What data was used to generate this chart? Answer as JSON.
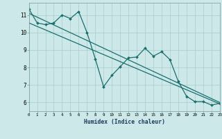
{
  "xlabel": "Humidex (Indice chaleur)",
  "bg_color": "#cce8e8",
  "grid_color": "#aacccc",
  "line_color": "#1a6e6e",
  "x_min": 0,
  "x_max": 23,
  "y_min": 5.5,
  "y_max": 11.7,
  "y_ticks": [
    6,
    7,
    8,
    9,
    10,
    11
  ],
  "line1_x": [
    0,
    1,
    2,
    3,
    4,
    5,
    6,
    7,
    8,
    9,
    10,
    11,
    12,
    13,
    14,
    15,
    16,
    17,
    18,
    19,
    20,
    21,
    22,
    23
  ],
  "line1_y": [
    11.35,
    10.55,
    10.45,
    10.55,
    11.0,
    10.8,
    11.2,
    10.0,
    8.5,
    6.9,
    7.55,
    8.05,
    8.55,
    8.6,
    9.1,
    8.65,
    8.9,
    8.45,
    7.2,
    6.35,
    6.05,
    6.05,
    5.85,
    5.95
  ],
  "line2_x": [
    0,
    23
  ],
  "line2_y": [
    11.1,
    6.0
  ],
  "line3_x": [
    0,
    23
  ],
  "line3_y": [
    10.55,
    5.92
  ]
}
